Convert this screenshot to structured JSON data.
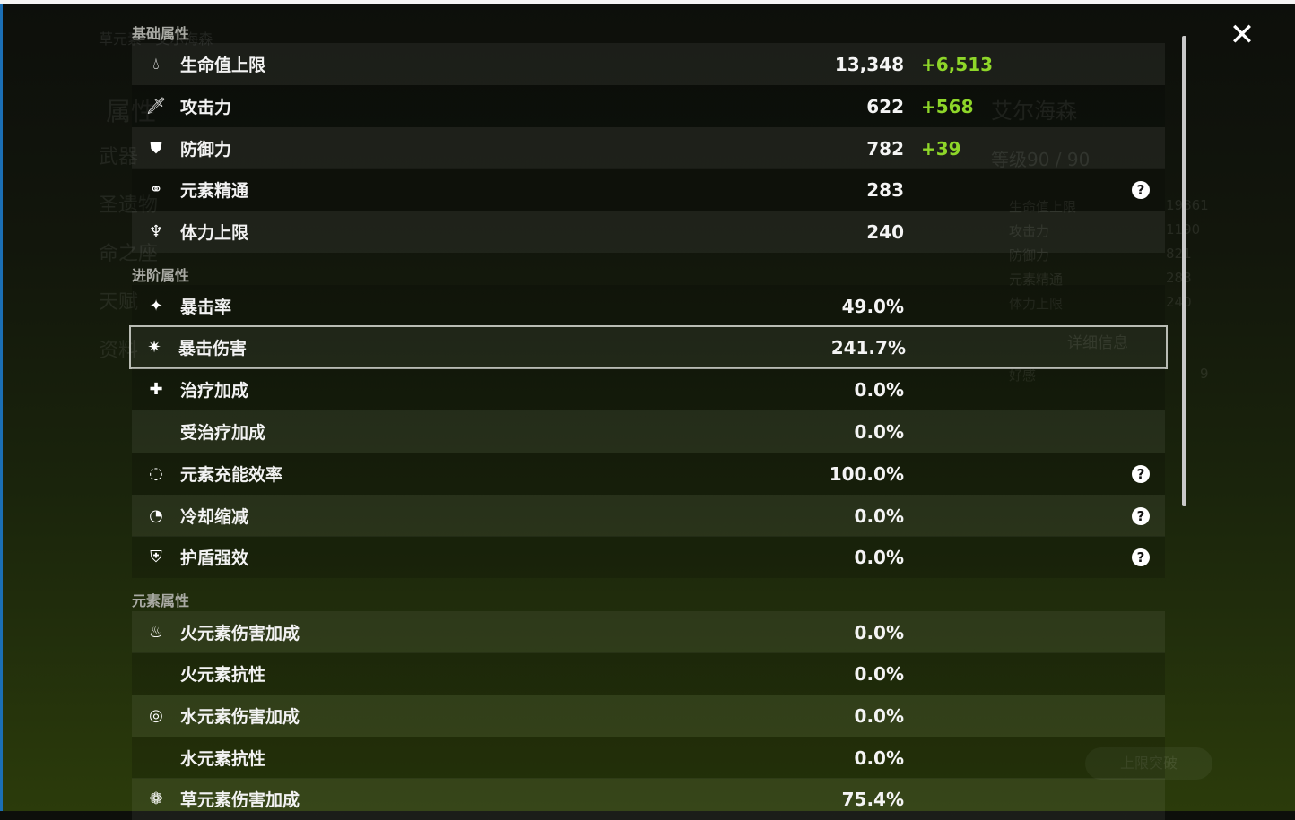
{
  "background": {
    "element_title": "草元素 · 艾尔海森",
    "nav": [
      "属性",
      "武器",
      "圣遗物",
      "命之座",
      "天赋",
      "资料"
    ],
    "character_name": "艾尔海森",
    "level": "等级90 / 90",
    "mini_stats": [
      {
        "label": "生命值上限",
        "value": "19861"
      },
      {
        "label": "攻击力",
        "value": "1190"
      },
      {
        "label": "防御力",
        "value": "821"
      },
      {
        "label": "元素精通",
        "value": "283"
      },
      {
        "label": "体力上限",
        "value": "240"
      }
    ],
    "details_button": "详细信息",
    "friendship_label": "好感",
    "friendship_value": "9",
    "ascend_button": "上限突破"
  },
  "sections": [
    {
      "title": "基础属性",
      "rows": [
        {
          "icon": "hp-drop-icon",
          "name": "生命值上限",
          "value": "13,348",
          "bonus": "+6,513"
        },
        {
          "icon": "sword-icon",
          "name": "攻击力",
          "value": "622",
          "bonus": "+568"
        },
        {
          "icon": "shield-icon",
          "name": "防御力",
          "value": "782",
          "bonus": "+39"
        },
        {
          "icon": "elemental-mastery-icon",
          "name": "元素精通",
          "value": "283",
          "help": true
        },
        {
          "icon": "stamina-icon",
          "name": "体力上限",
          "value": "240"
        }
      ]
    },
    {
      "title": "进阶属性",
      "rows": [
        {
          "icon": "crit-rate-icon",
          "name": "暴击率",
          "value": "49.0%"
        },
        {
          "icon": "crit-dmg-icon",
          "name": "暴击伤害",
          "value": "241.7%",
          "selected": true
        },
        {
          "icon": "healing-cross-icon",
          "name": "治疗加成",
          "value": "0.0%"
        },
        {
          "icon": "",
          "name": "受治疗加成",
          "value": "0.0%"
        },
        {
          "icon": "energy-recharge-icon",
          "name": "元素充能效率",
          "value": "100.0%",
          "help": true
        },
        {
          "icon": "cooldown-icon",
          "name": "冷却缩减",
          "value": "0.0%",
          "help": true
        },
        {
          "icon": "shield-strength-icon",
          "name": "护盾强效",
          "value": "0.0%",
          "help": true
        }
      ]
    },
    {
      "title": "元素属性",
      "rows": [
        {
          "icon": "pyro-icon",
          "name": "火元素伤害加成",
          "value": "0.0%"
        },
        {
          "icon": "",
          "name": "火元素抗性",
          "value": "0.0%"
        },
        {
          "icon": "hydro-icon",
          "name": "水元素伤害加成",
          "value": "0.0%"
        },
        {
          "icon": "",
          "name": "水元素抗性",
          "value": "0.0%"
        },
        {
          "icon": "dendro-icon",
          "name": "草元素伤害加成",
          "value": "75.4%"
        }
      ]
    }
  ],
  "help_glyph": "?",
  "close_glyph": "✕",
  "colors": {
    "bonus": "#8ed629",
    "selected_outline": "#b9bcb4"
  }
}
